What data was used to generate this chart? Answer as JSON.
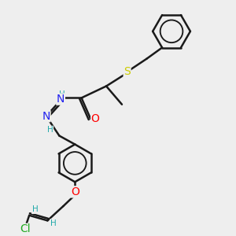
{
  "bg_color": "#eeeeee",
  "bond_color": "#1a1a1a",
  "bond_width": 1.8,
  "atom_colors": {
    "S": "#cccc00",
    "O": "#ff0000",
    "N": "#2222ee",
    "H": "#22aaaa",
    "Cl": "#22aa22",
    "C": "#1a1a1a"
  },
  "font_size": 8.5,
  "figsize": [
    3.0,
    3.0
  ],
  "dpi": 100
}
